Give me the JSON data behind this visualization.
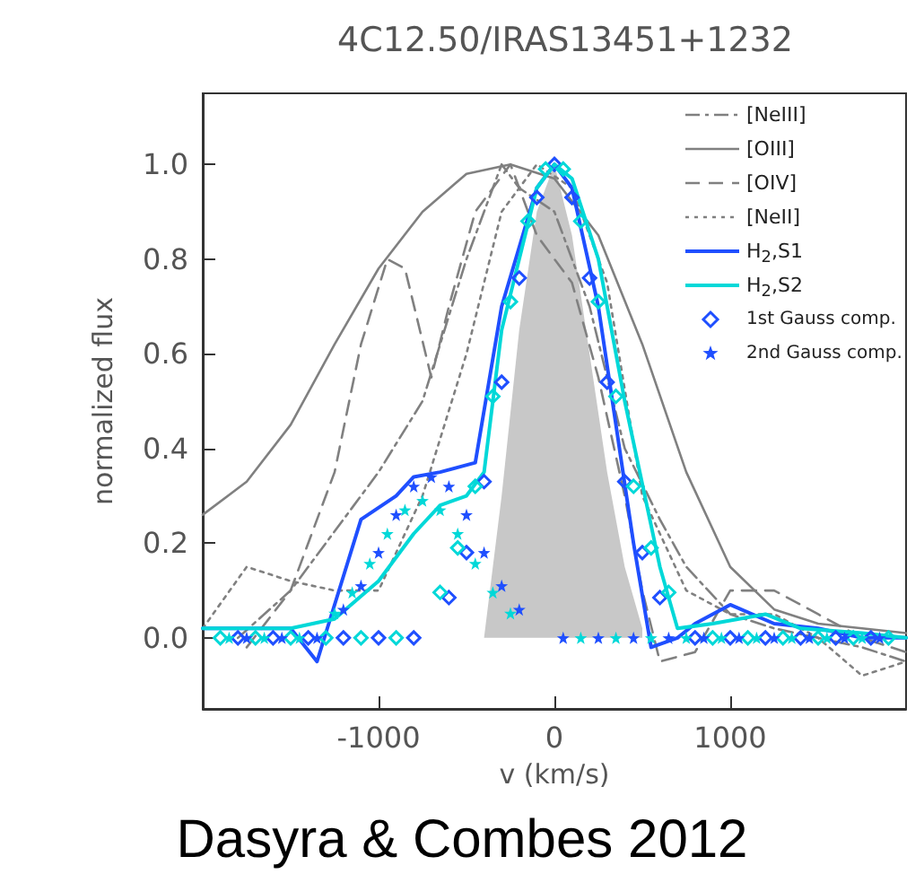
{
  "chart_data": {
    "type": "line",
    "title": "4C12.50/IRAS13451+1232",
    "xlabel": "v (km/s)",
    "ylabel": "normalized flux",
    "xlim": [
      -2000,
      2000
    ],
    "xticks": [
      -1000,
      0,
      1000
    ],
    "ylim": [
      -0.15,
      1.15
    ],
    "yticks": [
      {
        "value": 0,
        "label": "0.0"
      },
      {
        "value": 0.2,
        "label": "0.2"
      },
      {
        "value": 0.4,
        "label": "0.4"
      },
      {
        "value": 0.6,
        "label": "0.6"
      },
      {
        "value": 0.8,
        "label": "0.8"
      },
      {
        "value": 1,
        "label": "1.0"
      }
    ],
    "legend": "top right",
    "grid": false,
    "annotations": [
      "Dasyra & Combes 2012"
    ],
    "series": [
      {
        "type": "area",
        "color": "#c8c8c8",
        "marker": "none",
        "x": [
          -400,
          -300,
          -200,
          -100,
          0,
          100,
          200,
          300,
          400,
          500
        ],
        "values": [
          0,
          0.3,
          0.65,
          0.9,
          1.0,
          0.85,
          0.6,
          0.35,
          0.15,
          0.02
        ]
      },
      {
        "name": "[NeIII]",
        "color": "#808080",
        "line_style": "dashdot",
        "marker": "none",
        "x": [
          -1800,
          -1500,
          -1000,
          -750,
          -500,
          -300,
          -200,
          0,
          200,
          400,
          600,
          750,
          1000,
          1250,
          1500,
          1750,
          2000
        ],
        "values": [
          0,
          0.1,
          0.35,
          0.5,
          0.8,
          1.0,
          0.95,
          0.9,
          0.7,
          0.4,
          0.25,
          0.15,
          0.05,
          0.02,
          0,
          -0.02,
          -0.05
        ]
      },
      {
        "name": "[OIII]",
        "color": "#808080",
        "line_style": "solid",
        "marker": "none",
        "x": [
          -2000,
          -1750,
          -1500,
          -1250,
          -1000,
          -750,
          -500,
          -250,
          0,
          250,
          500,
          750,
          1000,
          1250,
          1500,
          1750,
          2000
        ],
        "values": [
          0.26,
          0.33,
          0.45,
          0.62,
          0.78,
          0.9,
          0.98,
          1.0,
          0.97,
          0.85,
          0.62,
          0.35,
          0.15,
          0.06,
          0.03,
          0.02,
          0.01
        ]
      },
      {
        "name": "[OIV]",
        "color": "#808080",
        "line_style": "dashed",
        "marker": "none",
        "x": [
          -1750,
          -1500,
          -1250,
          -1100,
          -950,
          -850,
          -700,
          -600,
          -450,
          -250,
          -100,
          100,
          250,
          400,
          500,
          600,
          800,
          1000,
          1250,
          1500,
          1750,
          2000
        ],
        "values": [
          -0.02,
          0.1,
          0.35,
          0.62,
          0.8,
          0.78,
          0.55,
          0.7,
          0.9,
          1.0,
          0.85,
          0.75,
          0.55,
          0.3,
          0.1,
          -0.05,
          -0.03,
          0.1,
          0.1,
          0.05,
          0,
          -0.03
        ]
      },
      {
        "name": "[NeII]",
        "color": "#808080",
        "line_style": "dotted",
        "marker": "none",
        "x": [
          -2000,
          -1750,
          -1500,
          -1250,
          -1000,
          -750,
          -500,
          -300,
          -100,
          100,
          300,
          500,
          750,
          1000,
          1250,
          1500,
          1750,
          2000
        ],
        "values": [
          0.02,
          0.15,
          0.12,
          0.1,
          0.1,
          0.3,
          0.6,
          0.9,
          1.0,
          0.95,
          0.75,
          0.3,
          0.1,
          0.05,
          0.05,
          0,
          -0.08,
          -0.05
        ]
      },
      {
        "name": "H$_{2}$,S1",
        "color": "#1f4fff",
        "line_style": "solid",
        "marker": "none",
        "x": [
          -2000,
          -1500,
          -1350,
          -1200,
          -1100,
          -900,
          -800,
          -650,
          -550,
          -450,
          -300,
          -100,
          0,
          100,
          250,
          450,
          550,
          700,
          800,
          1000,
          1250,
          1500,
          1750,
          2000
        ],
        "values": [
          0.02,
          0.02,
          -0.05,
          0.13,
          0.25,
          0.3,
          0.34,
          0.35,
          0.36,
          0.37,
          0.7,
          0.95,
          1.0,
          0.95,
          0.7,
          0.2,
          -0.02,
          0,
          0.03,
          0.07,
          0.03,
          0.02,
          0,
          0
        ]
      },
      {
        "name": "H$_{2}$,S2",
        "color": "#00d8d8",
        "line_style": "solid",
        "marker": "none",
        "x": [
          -2000,
          -1500,
          -1250,
          -1000,
          -800,
          -650,
          -500,
          -400,
          -300,
          -100,
          0,
          100,
          250,
          400,
          600,
          700,
          900,
          1200,
          1400,
          1750,
          2000
        ],
        "values": [
          0.02,
          0.02,
          0.04,
          0.12,
          0.22,
          0.28,
          0.3,
          0.35,
          0.65,
          0.95,
          1.0,
          0.97,
          0.8,
          0.5,
          0.15,
          0.02,
          0.03,
          0.05,
          0.02,
          0.01,
          0
        ]
      },
      {
        "name": "1st Gauss comp.",
        "type": "scatter",
        "color": "#1f4fff",
        "marker": "diamond",
        "x": [
          -1800,
          -1600,
          -1400,
          -1200,
          -1000,
          -800,
          -600,
          -500,
          -400,
          -300,
          -200,
          -100,
          0,
          100,
          200,
          300,
          400,
          500,
          600,
          800,
          1000,
          1200,
          1400,
          1600,
          1800
        ],
        "values": [
          0,
          0,
          0,
          0,
          0,
          0,
          0.085,
          0.18,
          0.33,
          0.54,
          0.76,
          0.93,
          1.0,
          0.93,
          0.76,
          0.54,
          0.33,
          0.18,
          0.085,
          0,
          0,
          0,
          0,
          0,
          0
        ]
      },
      {
        "type": "scatter",
        "color": "#00d8d8",
        "marker": "diamond",
        "x": [
          -1900,
          -1700,
          -1500,
          -1300,
          -1100,
          -900,
          -650,
          -550,
          -450,
          -350,
          -250,
          -150,
          -50,
          50,
          150,
          250,
          350,
          450,
          550,
          650,
          900,
          1100,
          1300,
          1500,
          1700,
          1900
        ],
        "values": [
          0,
          0,
          0,
          0,
          0,
          0,
          0.096,
          0.19,
          0.32,
          0.51,
          0.71,
          0.88,
          0.99,
          0.99,
          0.88,
          0.71,
          0.51,
          0.32,
          0.19,
          0.096,
          0,
          0,
          0,
          0,
          0,
          0
        ]
      },
      {
        "name": "2nd Gauss comp.",
        "type": "scatter",
        "color": "#1f4fff",
        "marker": "star",
        "x": [
          -1750,
          -1550,
          -1350,
          -1200,
          -1100,
          -1000,
          -900,
          -800,
          -700,
          -600,
          -500,
          -400,
          -300,
          -200,
          50,
          250,
          450,
          650,
          850,
          1050,
          1250,
          1450,
          1650,
          1850
        ],
        "values": [
          0,
          0,
          0,
          0.06,
          0.11,
          0.18,
          0.26,
          0.32,
          0.34,
          0.32,
          0.26,
          0.18,
          0.11,
          0.06,
          0,
          0,
          0,
          0,
          0,
          0,
          0,
          0,
          0,
          0
        ]
      },
      {
        "type": "scatter",
        "color": "#00d8d8",
        "marker": "star",
        "x": [
          -1850,
          -1650,
          -1450,
          -1250,
          -1150,
          -1050,
          -950,
          -850,
          -750,
          -650,
          -550,
          -450,
          -350,
          -250,
          150,
          350,
          550,
          750,
          950,
          1150,
          1350,
          1550,
          1750
        ],
        "values": [
          0,
          0,
          0,
          0.052,
          0.096,
          0.157,
          0.22,
          0.27,
          0.29,
          0.27,
          0.22,
          0.157,
          0.096,
          0.052,
          0,
          0,
          0,
          0,
          0,
          0,
          0,
          0,
          0
        ]
      }
    ]
  }
}
